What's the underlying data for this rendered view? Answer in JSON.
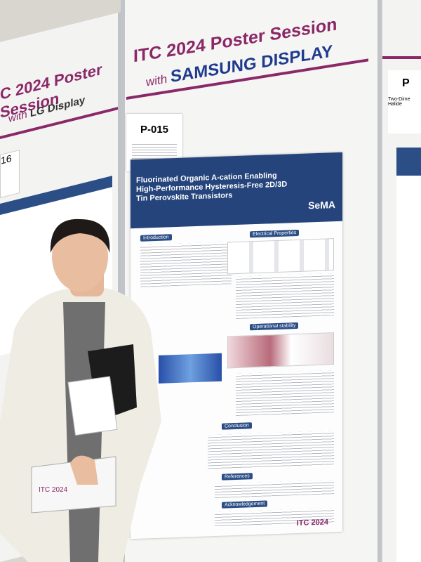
{
  "main_poster": {
    "banner_title": "ITC 2024 Poster Session",
    "banner_with": "with",
    "banner_sponsor": "SAMSUNG DISPLAY",
    "board_number": "P-015",
    "paper_title": "Fluorinated Organic A-cation Enabling High-Performance Hysteresis-Free 2D/3D Tin Perovskite Transistors",
    "logo": "SeMA",
    "sections": [
      "Introduction",
      "Electrical Properties",
      "Operational stability",
      "Conclusion",
      "References",
      "Acknowledgement"
    ],
    "footer": "ITC 2024"
  },
  "left_poster": {
    "banner_title": "C 2024 Poster Session",
    "banner_with": "with",
    "banner_sponsor": "LG Display",
    "board_number": "16"
  },
  "right_poster": {
    "board_number": "P",
    "title_fragment": "Two-Dime",
    "title_fragment_2": "Halide"
  },
  "badge": {
    "text": "ITC 2024"
  }
}
